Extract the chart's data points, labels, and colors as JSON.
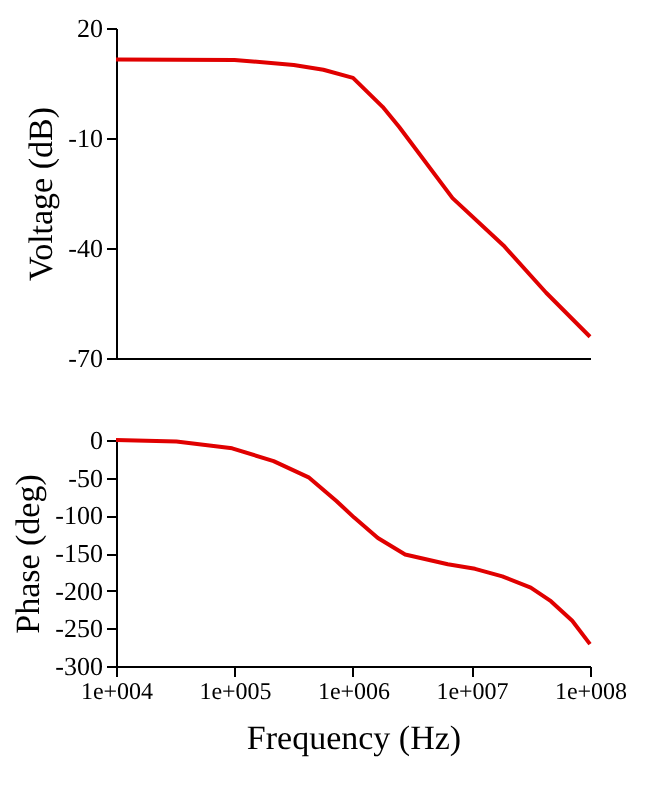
{
  "chart_data": [
    {
      "type": "line",
      "ylabel": "Voltage (dB)",
      "log": "x",
      "grid": false,
      "tick_labels": "y",
      "line_style": "solid",
      "marker": "none",
      "xlim": [
        10000,
        100000000
      ],
      "xticks": [
        {
          "value": 10000,
          "label": null
        },
        {
          "value": 100000,
          "label": null
        },
        {
          "value": 1000000,
          "label": null
        },
        {
          "value": 10000000,
          "label": null
        },
        {
          "value": 100000000,
          "label": null
        }
      ],
      "ylim": [
        -70,
        20
      ],
      "yticks": [
        20,
        -10,
        -40,
        -70
      ],
      "series": [
        {
          "color": "#e00000",
          "x": [
            10000,
            100000,
            316228,
            562341,
            1000000,
            1778279,
            2454709,
            6918310,
            18620871,
            42657952,
            100000000
          ],
          "values": [
            11.4,
            11.3,
            9.9,
            8.6,
            6.4,
            -1.5,
            -7,
            -26.4,
            -39.3,
            -52.2,
            -64.2
          ]
        }
      ]
    },
    {
      "type": "line",
      "xlabel": "Frequency (Hz)",
      "ylabel": "Phase (deg)",
      "log": "x",
      "grid": false,
      "line_style": "solid",
      "marker": "none",
      "xlim": [
        10000,
        100000000
      ],
      "xticks": [
        {
          "value": 10000,
          "label": "1e+004"
        },
        {
          "value": 100000,
          "label": "1e+005"
        },
        {
          "value": 1000000,
          "label": "1e+006"
        },
        {
          "value": 10000000,
          "label": "1e+007"
        },
        {
          "value": 100000000,
          "label": "1e+008"
        }
      ],
      "ylim": [
        -300,
        0
      ],
      "yticks": [
        0,
        -50,
        -100,
        -150,
        -200,
        -250,
        -300
      ],
      "series": [
        {
          "color": "#e00000",
          "x": [
            10000,
            32359,
            95499,
            213796,
            426580,
            724436,
            1023293,
            1621810,
            2754229,
            6309573,
            10715193,
            18197009,
            31622777,
            46773514,
            70794578,
            100000000
          ],
          "values": [
            0,
            -2,
            -11,
            -28,
            -50,
            -81,
            -103,
            -130,
            -152,
            -165,
            -171,
            -181,
            -196,
            -214,
            -240,
            -271
          ]
        }
      ]
    }
  ]
}
